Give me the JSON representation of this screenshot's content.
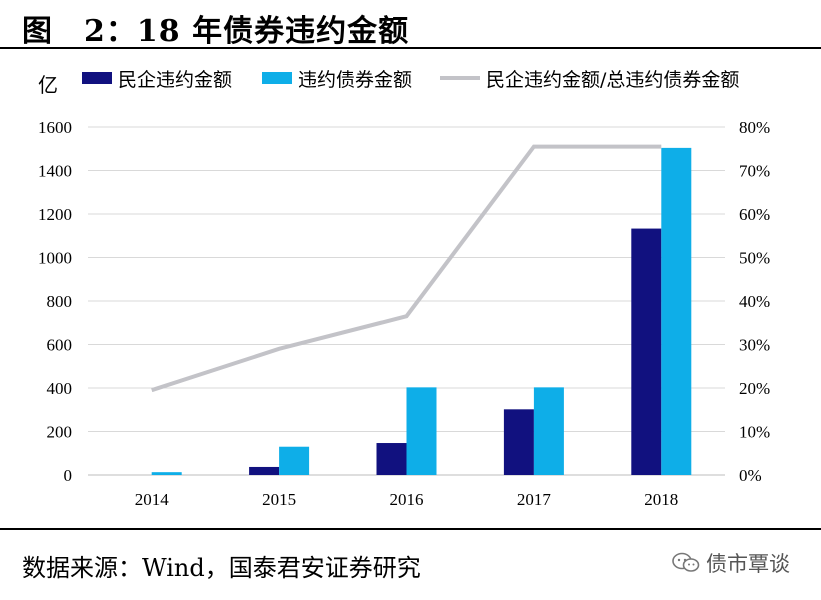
{
  "figure": {
    "title": "图　2：18 年债券违约金额"
  },
  "chart_data": {
    "type": "bar",
    "categories": [
      "2014",
      "2015",
      "2016",
      "2017",
      "2018"
    ],
    "series": [
      {
        "name": "民企违约金额",
        "kind": "bar",
        "axis": "left",
        "color": "#11117f",
        "values": [
          0,
          37,
          147,
          302,
          1133
        ]
      },
      {
        "name": "违约债券金额",
        "kind": "bar",
        "axis": "left",
        "color": "#0eaee8",
        "values": [
          13,
          130,
          403,
          403,
          1504
        ]
      },
      {
        "name": "民企违约金额/总违约债券金额",
        "kind": "line",
        "axis": "right",
        "color": "#c3c3c8",
        "values": [
          0.195,
          0.29,
          0.365,
          0.755,
          0.755
        ]
      }
    ],
    "y_left": {
      "label": "亿",
      "min": 0,
      "max": 1600,
      "ticks": [
        "0",
        "200",
        "400",
        "600",
        "800",
        "1000",
        "1200",
        "1400",
        "1600"
      ]
    },
    "y_right": {
      "min": 0,
      "max": 0.8,
      "ticks": [
        "0%",
        "10%",
        "20%",
        "30%",
        "40%",
        "50%",
        "60%",
        "70%",
        "80%"
      ]
    },
    "grid": true,
    "legend_position": "top"
  },
  "footer": {
    "source_label": "数据来源：",
    "source_text": "Wind，国泰君安证券研究",
    "brand": "债市覃谈"
  }
}
